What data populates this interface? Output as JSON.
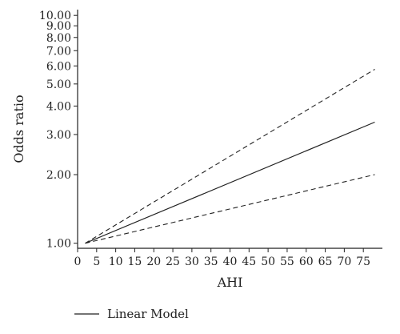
{
  "chart_data": {
    "type": "line",
    "title": "",
    "xlabel": "AHI",
    "ylabel": "Odds ratio",
    "y_scale": "log",
    "xlim": [
      0,
      80
    ],
    "ylim": [
      0.95,
      10.6
    ],
    "x_ticks": [
      0,
      5,
      10,
      15,
      20,
      25,
      30,
      35,
      40,
      45,
      50,
      55,
      60,
      65,
      70,
      75
    ],
    "y_ticks": [
      1,
      2,
      3,
      4,
      5,
      6,
      7,
      8,
      9,
      10
    ],
    "y_tick_labels": [
      "1.00",
      "2.00",
      "3.00",
      "4.00",
      "5.00",
      "6.00",
      "7.00",
      "8.00",
      "9.00",
      "10.00"
    ],
    "grid": false,
    "legend_position": "bottom-left",
    "series": [
      {
        "name": "Linear Model",
        "style": "solid",
        "x": [
          2,
          78
        ],
        "y": [
          1.0,
          3.4
        ]
      },
      {
        "style": "dashed",
        "x": [
          2,
          78
        ],
        "y": [
          1.0,
          5.8
        ]
      },
      {
        "style": "dashed",
        "x": [
          2,
          78
        ],
        "y": [
          1.0,
          2.0
        ]
      }
    ],
    "legend": [
      "Linear Model"
    ]
  }
}
